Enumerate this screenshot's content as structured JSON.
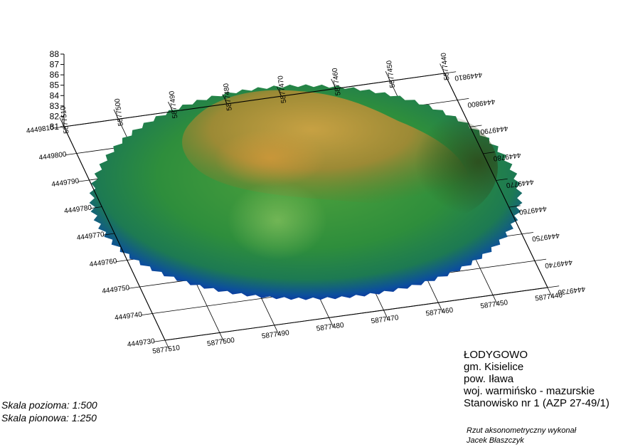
{
  "site": {
    "name": "ŁODYGOWO",
    "commune": "gm. Kisielice",
    "county": "pow. Iława",
    "voivodeship": "woj. warmińsko - mazurskie",
    "site_id": "Stanowisko nr 1 (AZP 27-49/1)"
  },
  "credits": {
    "line1": "Rzut aksonometryczny wykonał",
    "line2": "Jacek Błaszczyk"
  },
  "scale": {
    "horizontal": "Skala pozioma: 1:500",
    "vertical": "Skala pionowa: 1:250"
  },
  "axes": {
    "x_front_ticks": [
      "5877510",
      "5877500",
      "5877490",
      "5877480",
      "5877470",
      "5877460",
      "5877450",
      "5877440"
    ],
    "x_back_ticks": [
      "5877510",
      "5877500",
      "5877490",
      "5877480",
      "5877470",
      "5877460",
      "5877450",
      "5877440"
    ],
    "y_left_ticks": [
      "4449810",
      "4449800",
      "4449790",
      "4449780",
      "4449770",
      "4449760",
      "4449750",
      "4449740",
      "4449730"
    ],
    "y_right_ticks": [
      "4449810",
      "4449800",
      "4449790",
      "4449780",
      "4449770",
      "4449760",
      "4449750",
      "4449740",
      "4449730"
    ],
    "z_ticks": [
      "81",
      "82",
      "83",
      "84",
      "85",
      "86",
      "87",
      "88"
    ]
  },
  "colors": {
    "low": "#0a1aa8",
    "mid": "#2f9a3a",
    "high": "#c89a3a",
    "shadow": "#3f5a1c"
  }
}
